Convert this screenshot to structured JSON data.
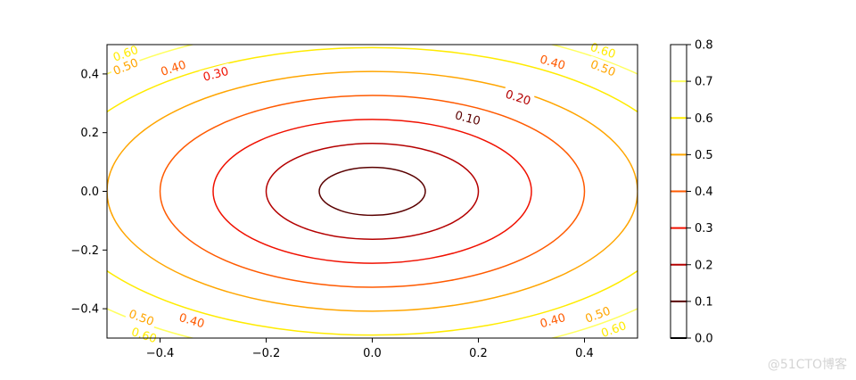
{
  "chart_data": {
    "type": "contour",
    "title": "",
    "xlabel": "",
    "ylabel": "",
    "xlim": [
      -0.5,
      0.5
    ],
    "ylim": [
      -0.5,
      0.5
    ],
    "x_ticks": [
      -0.4,
      -0.2,
      0.0,
      0.2,
      0.4
    ],
    "x_tick_labels": [
      "−0.4",
      "−0.2",
      "0.0",
      "0.2",
      "0.4"
    ],
    "y_ticks": [
      -0.4,
      -0.2,
      0.0,
      0.2,
      0.4
    ],
    "y_tick_labels": [
      "−0.4",
      "−0.2",
      "0.0",
      "0.2",
      "0.4"
    ],
    "function": "z = sqrt(x^2 + 1.5*y^2)",
    "colormap": "hot",
    "grid": false,
    "levels": [
      {
        "value": 0.0,
        "label": "0.00",
        "color": "#000000"
      },
      {
        "value": 0.1,
        "label": "0.10",
        "color": "#5a0000"
      },
      {
        "value": 0.2,
        "label": "0.20",
        "color": "#b40000"
      },
      {
        "value": 0.3,
        "label": "0.30",
        "color": "#f01000"
      },
      {
        "value": 0.4,
        "label": "0.40",
        "color": "#ff5a00"
      },
      {
        "value": 0.5,
        "label": "0.50",
        "color": "#ffa500"
      },
      {
        "value": 0.6,
        "label": "0.60",
        "color": "#ffeb00"
      },
      {
        "value": 0.7,
        "label": "0.70",
        "color": "#ffff60"
      }
    ],
    "inline_labels": [
      {
        "level": 0.1,
        "x": 0.18,
        "y": 0.25,
        "text": "0.10"
      },
      {
        "level": 0.2,
        "x": 0.275,
        "y": 0.32,
        "text": "0.20"
      },
      {
        "level": 0.3,
        "x": -0.295,
        "y": 0.4,
        "text": "0.30"
      },
      {
        "level": 0.4,
        "x": -0.375,
        "y": 0.42,
        "text": "0.40"
      },
      {
        "level": 0.4,
        "x": 0.34,
        "y": 0.44,
        "text": "0.40"
      },
      {
        "level": 0.4,
        "x": -0.34,
        "y": -0.44,
        "text": "0.40"
      },
      {
        "level": 0.4,
        "x": 0.34,
        "y": -0.44,
        "text": "0.40"
      },
      {
        "level": 0.5,
        "x": -0.465,
        "y": 0.425,
        "text": "0.50"
      },
      {
        "level": 0.5,
        "x": 0.435,
        "y": 0.42,
        "text": "0.50"
      },
      {
        "level": 0.5,
        "x": -0.435,
        "y": -0.43,
        "text": "0.50"
      },
      {
        "level": 0.5,
        "x": 0.425,
        "y": -0.42,
        "text": "0.50"
      },
      {
        "level": 0.6,
        "x": -0.465,
        "y": 0.47,
        "text": "0.60"
      },
      {
        "level": 0.6,
        "x": 0.435,
        "y": 0.48,
        "text": "0.60"
      },
      {
        "level": 0.6,
        "x": -0.43,
        "y": -0.49,
        "text": "0.60"
      },
      {
        "level": 0.6,
        "x": 0.455,
        "y": -0.47,
        "text": "0.60"
      }
    ],
    "colorbar": {
      "min": 0.0,
      "max": 0.8,
      "ticks": [
        0.0,
        0.1,
        0.2,
        0.3,
        0.4,
        0.5,
        0.6,
        0.7,
        0.8
      ],
      "tick_labels": [
        "0.0",
        "0.1",
        "0.2",
        "0.3",
        "0.4",
        "0.5",
        "0.6",
        "0.7",
        "0.8"
      ]
    }
  },
  "watermark": "@51CTO博客"
}
